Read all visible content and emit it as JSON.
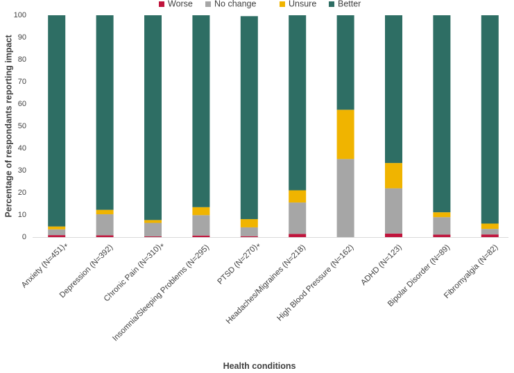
{
  "chart_data": {
    "type": "bar",
    "stacked": true,
    "title": "",
    "xlabel": "Health conditions",
    "ylabel": "Percentage of respondants reporting impact",
    "ylim": [
      0,
      100
    ],
    "yticks": [
      0,
      10,
      20,
      30,
      40,
      50,
      60,
      70,
      80,
      90,
      100
    ],
    "grid": false,
    "legend_position": "top",
    "categories": [
      "Anxiety (N=451)",
      "Depression (N=392)",
      "Chronic Pain (N=310)",
      "Insomnia/Sleeping Problems (N=295)",
      "PTSD (N=270)",
      "Headaches/Migraines (N=218)",
      "High Blood Pressure (N=162)",
      "ADHD (N=123)",
      "Bipolar Disorder (N=89)",
      "Fibromyalgia (N=82)"
    ],
    "annotations": [
      "*",
      "",
      "*",
      "",
      "*",
      "",
      "",
      "",
      "",
      ""
    ],
    "series": [
      {
        "name": "Worse",
        "color": "#C0143C",
        "values": [
          0.9,
          0.8,
          0.3,
          0.7,
          0.4,
          1.4,
          0.0,
          1.6,
          1.1,
          1.2
        ]
      },
      {
        "name": "No change",
        "color": "#A6A6A6",
        "values": [
          2.6,
          9.5,
          6.1,
          9.2,
          4.0,
          14.2,
          35.2,
          20.4,
          7.9,
          2.5
        ]
      },
      {
        "name": "Unsure",
        "color": "#F0B400",
        "values": [
          1.3,
          2.0,
          1.3,
          3.6,
          3.7,
          5.5,
          22.2,
          11.4,
          2.2,
          2.4
        ]
      },
      {
        "name": "Better",
        "color": "#2E6E64",
        "values": [
          95.2,
          87.7,
          92.3,
          86.5,
          91.5,
          78.9,
          42.6,
          66.6,
          88.8,
          93.9
        ]
      }
    ]
  }
}
